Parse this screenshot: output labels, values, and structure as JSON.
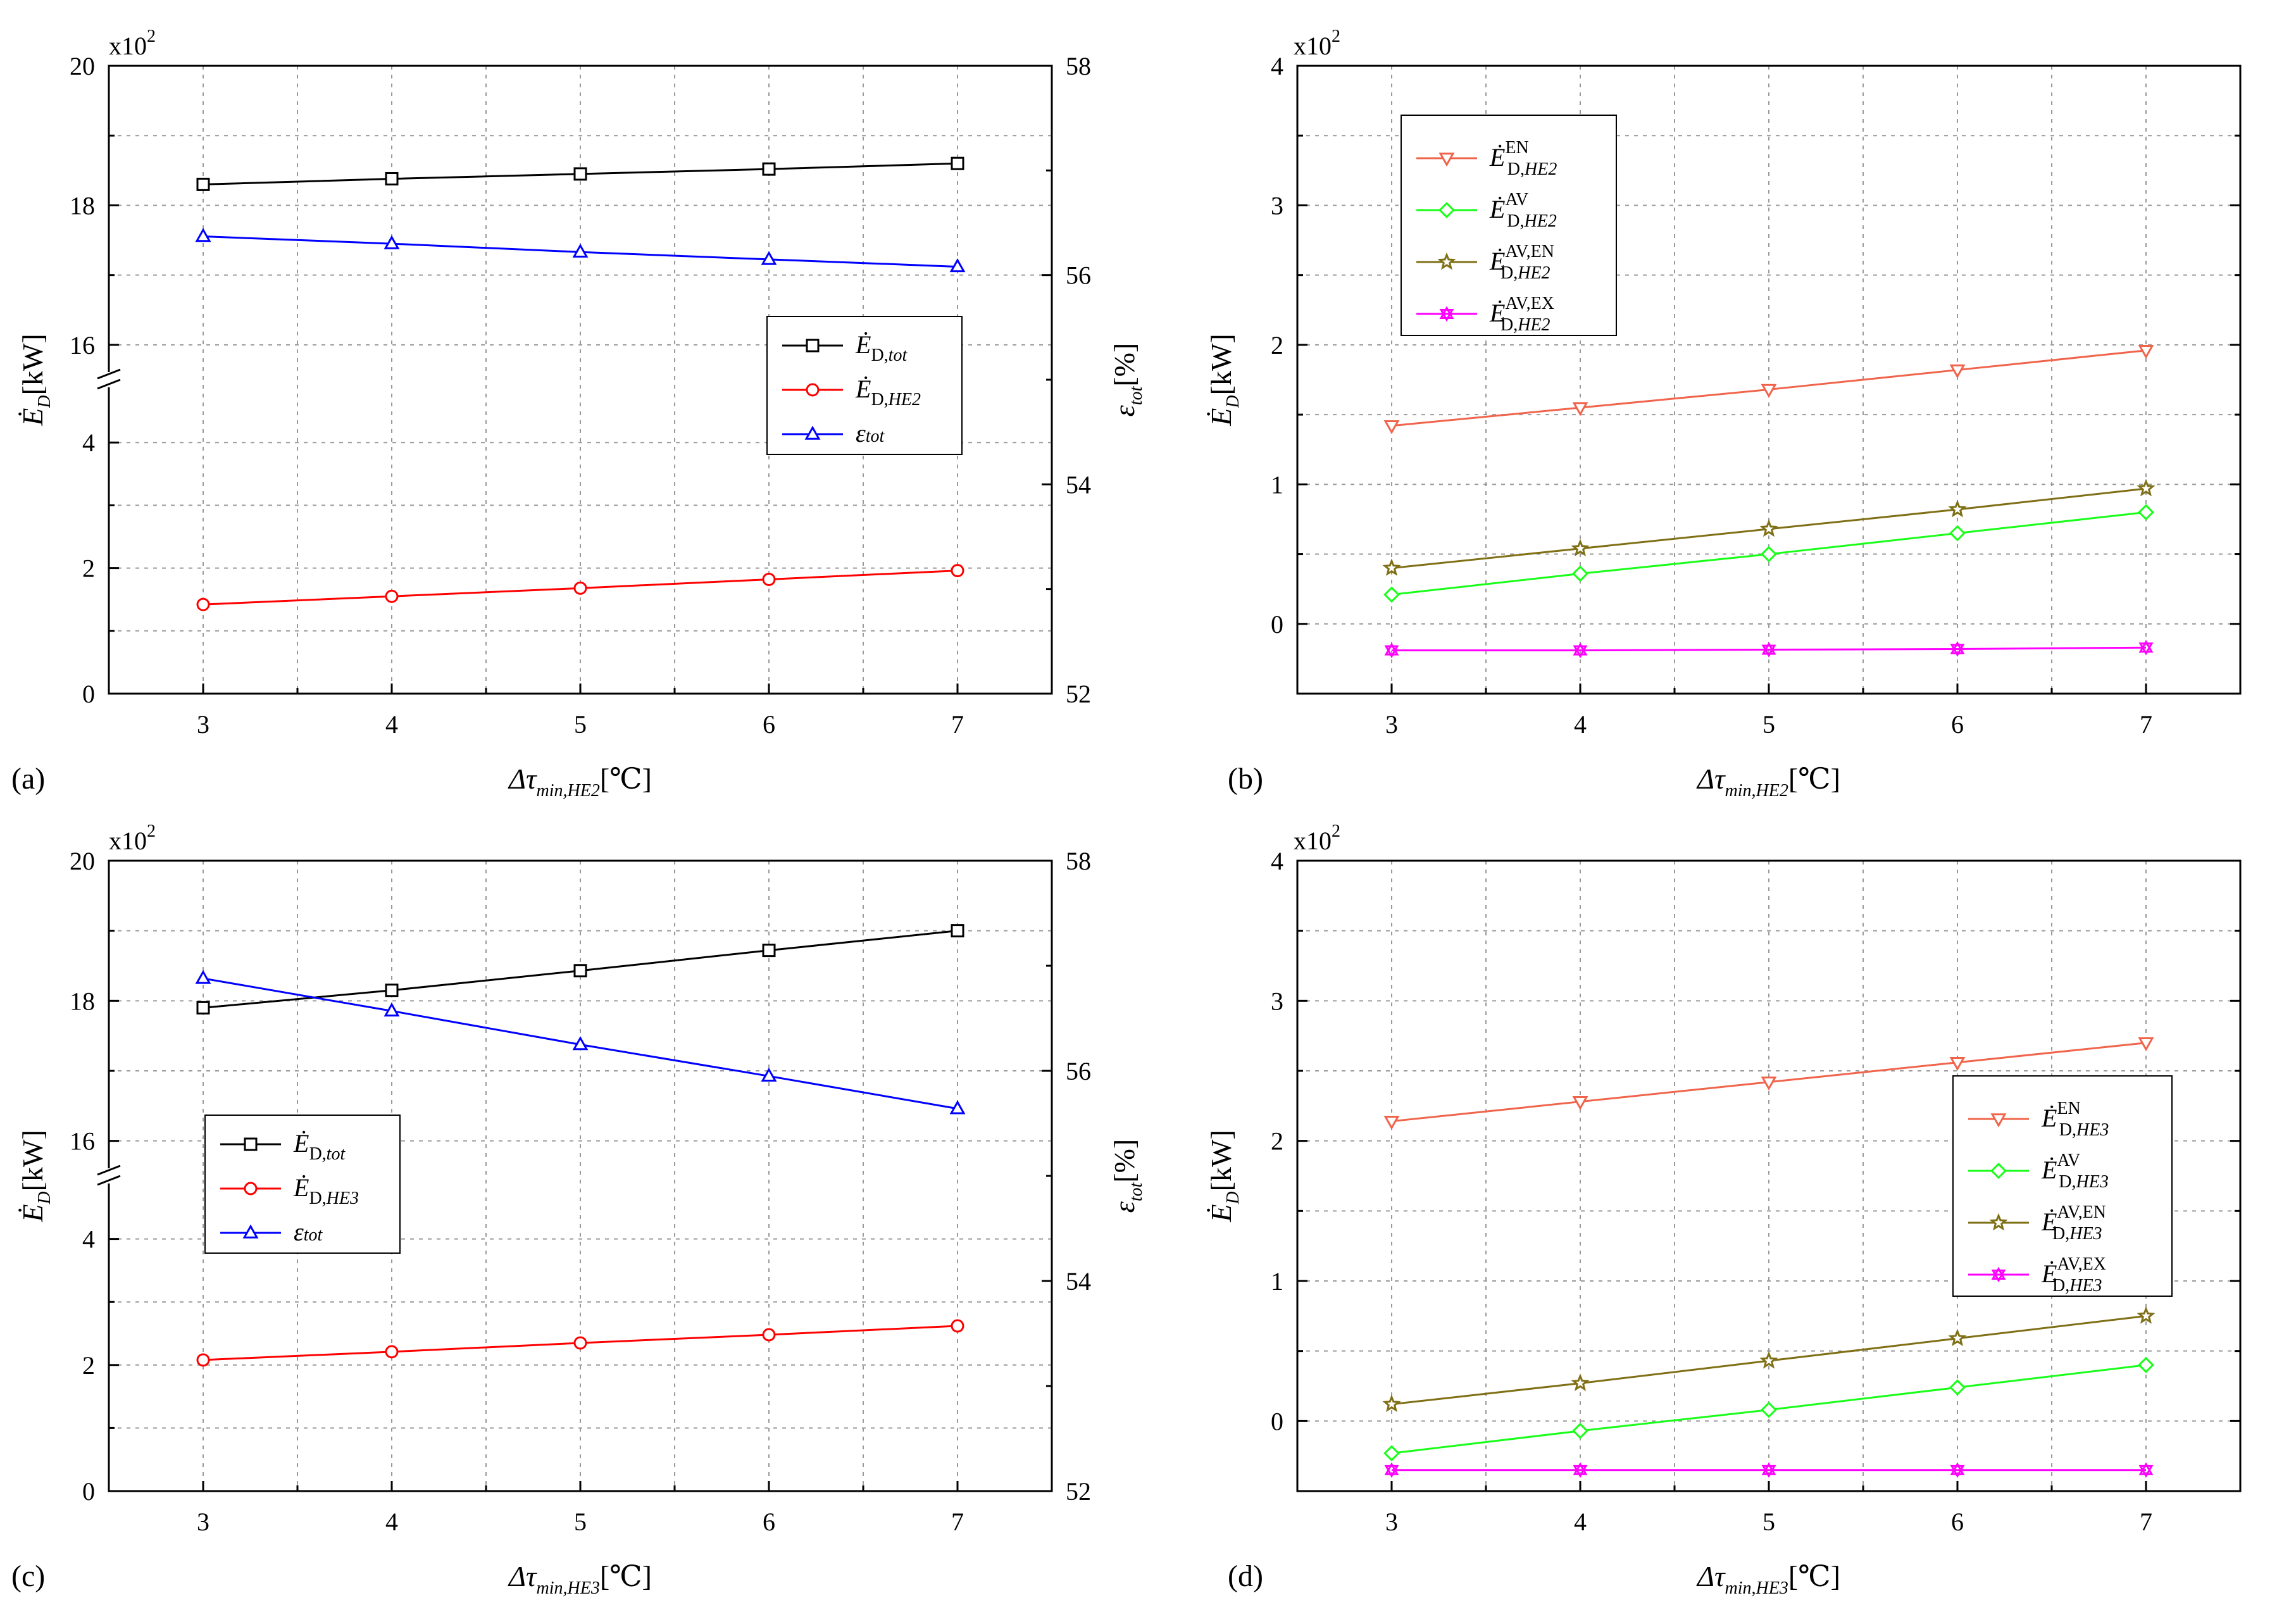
{
  "chart_data": [
    {
      "panel": "(a)",
      "type": "line",
      "x": [
        3,
        4,
        5,
        6,
        7
      ],
      "xlim": [
        2.5,
        7.5
      ],
      "xlabel": "Δτmin,HE2 [℃]",
      "xlabel_parts": {
        "main": "Δτ",
        "sub": "min,HE2",
        "unit": "[℃]"
      },
      "left_axis": {
        "label": "ĖD[kW]",
        "label_parts": {
          "main": "Ė",
          "sub": "D",
          "unit": "[kW]"
        },
        "multiplier": "x10",
        "multiplier_exp": "2",
        "broken": true,
        "lower_range": [
          0,
          5
        ],
        "upper_range": [
          15.5,
          20
        ],
        "lower_ticks": [
          "0",
          "2",
          "4"
        ],
        "upper_ticks": [
          "16",
          "18",
          "20"
        ]
      },
      "right_axis": {
        "label": "εtot[%]",
        "label_parts": {
          "main": "ε",
          "sub": "tot",
          "unit": "[%]"
        },
        "ylim": [
          52,
          58
        ],
        "ticks": [
          "52",
          "54",
          "56",
          "58"
        ]
      },
      "x_ticks": [
        "3",
        "4",
        "5",
        "6",
        "7"
      ],
      "legend_position": "center-right",
      "series": [
        {
          "name": "ĖD,tot",
          "main": "Ė",
          "sub": "D,",
          "subi": "tot",
          "sup": "",
          "axis": "left",
          "color": "#000000",
          "marker": "square",
          "values": [
            18.3,
            18.38,
            18.45,
            18.52,
            18.6
          ]
        },
        {
          "name": "ĖD,HE2",
          "main": "Ė",
          "sub": "D,",
          "subi": "HE2",
          "sup": "",
          "axis": "left",
          "color": "#ff0000",
          "marker": "circle",
          "values": [
            1.42,
            1.55,
            1.68,
            1.82,
            1.96
          ]
        },
        {
          "name": "εtot",
          "main": "ε",
          "sub": "",
          "subi": "tot",
          "sup": "",
          "axis": "right",
          "color": "#0000ff",
          "marker": "triangle-up",
          "values": [
            56.37,
            56.3,
            56.22,
            56.15,
            56.08
          ]
        }
      ]
    },
    {
      "panel": "(b)",
      "type": "line",
      "x": [
        3,
        4,
        5,
        6,
        7
      ],
      "xlim": [
        2.5,
        7.5
      ],
      "xlabel": "Δτmin,HE2 [℃]",
      "xlabel_parts": {
        "main": "Δτ",
        "sub": "min,HE2",
        "unit": "[℃]"
      },
      "ylabel": "ĖD[kW]",
      "ylabel_parts": {
        "main": "Ė",
        "sub": "D",
        "unit": "[kW]"
      },
      "multiplier": "x10",
      "multiplier_exp": "2",
      "ylim": [
        -0.5,
        4
      ],
      "y_ticks": [
        "0",
        "1",
        "2",
        "3",
        "4"
      ],
      "x_ticks": [
        "3",
        "4",
        "5",
        "6",
        "7"
      ],
      "legend_position": "top-left",
      "series": [
        {
          "name": "ĖD,HE2 EN",
          "main": "Ė",
          "sub": "D,",
          "subi": "HE2",
          "sup": "EN",
          "color": "#f0644b",
          "marker": "triangle-down",
          "values": [
            1.42,
            1.55,
            1.68,
            1.82,
            1.96
          ]
        },
        {
          "name": "ĖD,HE2 AV",
          "main": "Ė",
          "sub": "D,",
          "subi": "HE2",
          "sup": "AV",
          "color": "#19ff19",
          "marker": "diamond",
          "values": [
            0.21,
            0.36,
            0.5,
            0.65,
            0.8
          ]
        },
        {
          "name": "ĖD,HE2 AV,EN",
          "main": "Ė",
          "sub": "D,",
          "subi": "HE2",
          "sup": "AV,EN",
          "color": "#7f7016",
          "marker": "star",
          "values": [
            0.4,
            0.54,
            0.68,
            0.82,
            0.97
          ]
        },
        {
          "name": "ĖD,HE2 AV,EX",
          "main": "Ė",
          "sub": "D,",
          "subi": "HE2",
          "sup": "AV,EX",
          "color": "#ff00ff",
          "marker": "tri-star",
          "values": [
            -0.19,
            -0.19,
            -0.185,
            -0.18,
            -0.17
          ]
        }
      ]
    },
    {
      "panel": "(c)",
      "type": "line",
      "x": [
        3,
        4,
        5,
        6,
        7
      ],
      "xlim": [
        2.5,
        7.5
      ],
      "xlabel": "Δτmin,HE3 [℃]",
      "xlabel_parts": {
        "main": "Δτ",
        "sub": "min,HE3",
        "unit": "[℃]"
      },
      "left_axis": {
        "label": "ĖD[kW]",
        "label_parts": {
          "main": "Ė",
          "sub": "D",
          "unit": "[kW]"
        },
        "multiplier": "x10",
        "multiplier_exp": "2",
        "broken": true,
        "lower_range": [
          0,
          5
        ],
        "upper_range": [
          15.5,
          20
        ],
        "lower_ticks": [
          "0",
          "2",
          "4"
        ],
        "upper_ticks": [
          "16",
          "18",
          "20"
        ]
      },
      "right_axis": {
        "label": "εtot[%]",
        "label_parts": {
          "main": "ε",
          "sub": "tot",
          "unit": "[%]"
        },
        "ylim": [
          52,
          58
        ],
        "ticks": [
          "52",
          "54",
          "56",
          "58"
        ]
      },
      "x_ticks": [
        "3",
        "4",
        "5",
        "6",
        "7"
      ],
      "legend_position": "center-left",
      "series": [
        {
          "name": "ĖD,tot",
          "main": "Ė",
          "sub": "D,",
          "subi": "tot",
          "sup": "",
          "axis": "left",
          "color": "#000000",
          "marker": "square",
          "values": [
            17.9,
            18.15,
            18.43,
            18.72,
            19.0
          ]
        },
        {
          "name": "ĖD,HE3",
          "main": "Ė",
          "sub": "D,",
          "subi": "HE3",
          "sup": "",
          "axis": "left",
          "color": "#ff0000",
          "marker": "circle",
          "values": [
            2.08,
            2.21,
            2.35,
            2.48,
            2.62
          ]
        },
        {
          "name": "εtot",
          "main": "ε",
          "sub": "",
          "subi": "tot",
          "sup": "",
          "axis": "right",
          "color": "#0000ff",
          "marker": "triangle-up",
          "values": [
            56.88,
            56.57,
            56.25,
            55.95,
            55.64
          ]
        }
      ]
    },
    {
      "panel": "(d)",
      "type": "line",
      "x": [
        3,
        4,
        5,
        6,
        7
      ],
      "xlim": [
        2.5,
        7.5
      ],
      "xlabel": "Δτmin,HE3 [℃]",
      "xlabel_parts": {
        "main": "Δτ",
        "sub": "min,HE3",
        "unit": "[℃]"
      },
      "ylabel": "ĖD[kW]",
      "ylabel_parts": {
        "main": "Ė",
        "sub": "D",
        "unit": "[kW]"
      },
      "multiplier": "x10",
      "multiplier_exp": "2",
      "ylim": [
        -0.5,
        4
      ],
      "y_ticks": [
        "0",
        "1",
        "2",
        "3",
        "4"
      ],
      "x_ticks": [
        "3",
        "4",
        "5",
        "6",
        "7"
      ],
      "legend_position": "center-right",
      "series": [
        {
          "name": "ĖD,HE3 EN",
          "main": "Ė",
          "sub": "D,",
          "subi": "HE3",
          "sup": "EN",
          "color": "#f0644b",
          "marker": "triangle-down",
          "values": [
            2.14,
            2.28,
            2.42,
            2.56,
            2.7
          ]
        },
        {
          "name": "ĖD,HE3 AV",
          "main": "Ė",
          "sub": "D,",
          "subi": "HE3",
          "sup": "AV",
          "color": "#19ff19",
          "marker": "diamond",
          "values": [
            -0.23,
            -0.07,
            0.08,
            0.24,
            0.4
          ]
        },
        {
          "name": "ĖD,HE3 AV,EN",
          "main": "Ė",
          "sub": "D,",
          "subi": "HE3",
          "sup": "AV,EN",
          "color": "#7f7016",
          "marker": "star",
          "values": [
            0.12,
            0.27,
            0.43,
            0.59,
            0.75
          ]
        },
        {
          "name": "ĖD,HE3 AV,EX",
          "main": "Ė",
          "sub": "D,",
          "subi": "HE3",
          "sup": "AV,EX",
          "color": "#ff00ff",
          "marker": "tri-star",
          "values": [
            -0.35,
            -0.35,
            -0.35,
            -0.35,
            -0.35
          ]
        }
      ]
    }
  ]
}
